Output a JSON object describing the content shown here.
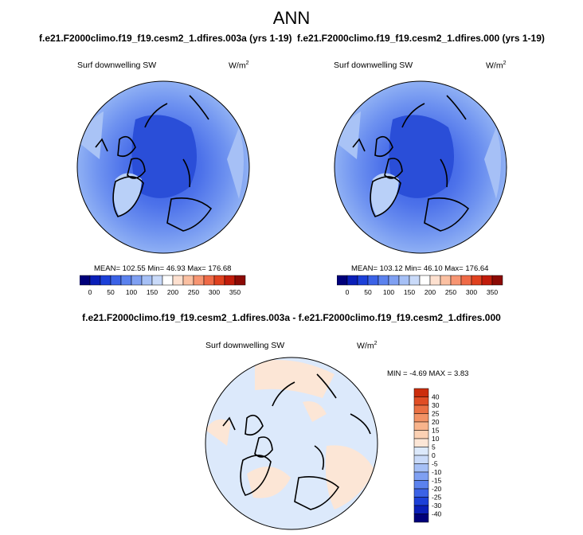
{
  "title": "ANN",
  "diff_title": "f.e21.F2000climo.f19_f19.cesm2_1.dfires.003a - f.e21.F2000climo.f19_f19.cesm2_1.dfires.000",
  "colors": {
    "land_outline": "#000000",
    "abs_palette": [
      "#00007a",
      "#0a1fb8",
      "#1c40d8",
      "#3b62e6",
      "#5b82ee",
      "#7fa0f2",
      "#a6c0f6",
      "#c9daf9",
      "#ffffff",
      "#fde0cf",
      "#fbc0a2",
      "#f79572",
      "#ef6a47",
      "#e0411f",
      "#c11c0b",
      "#8c0a05"
    ],
    "diff_palette": [
      "#00007a",
      "#0a1fb8",
      "#1c40d8",
      "#3b62e6",
      "#5b82ee",
      "#7fa0f2",
      "#a6c0f6",
      "#c9daf9",
      "#dce9fb",
      "#fce6d6",
      "#fbd1b4",
      "#f8b48c",
      "#f29366",
      "#ea7043",
      "#e04d24",
      "#cc2d0c"
    ]
  },
  "panels": [
    {
      "case_title": "f.e21.F2000climo.f19_f19.cesm2_1.dfires.003a (yrs 1-19)",
      "variable": "Surf downwelling SW",
      "units_base": "W/m",
      "units_exp": "2",
      "stats_text": "MEAN= 102.55  Min=  46.93  Max= 176.68",
      "colorbar_labels": [
        "0",
        "50",
        "100",
        "150",
        "200",
        "250",
        "300",
        "350"
      ]
    },
    {
      "case_title": "f.e21.F2000climo.f19_f19.cesm2_1.dfires.000 (yrs 1-19)",
      "variable": "Surf downwelling SW",
      "units_base": "W/m",
      "units_exp": "2",
      "stats_text": "MEAN= 103.12  Min=  46.10  Max= 176.64",
      "colorbar_labels": [
        "0",
        "50",
        "100",
        "150",
        "200",
        "250",
        "300",
        "350"
      ]
    },
    {
      "variable": "Surf downwelling SW",
      "units_base": "W/m",
      "units_exp": "2",
      "stats_text": "MIN =  -4.69 MAX =   3.83",
      "colorbar_labels": [
        "40",
        "30",
        "25",
        "20",
        "15",
        "10",
        "5",
        "0",
        "-5",
        "-10",
        "-15",
        "-20",
        "-25",
        "-30",
        "-40"
      ]
    }
  ]
}
